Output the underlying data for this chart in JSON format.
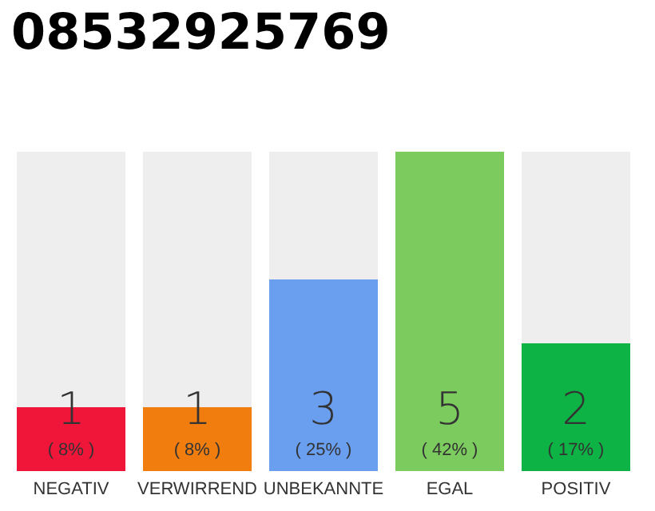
{
  "chart_data": {
    "type": "bar",
    "title": "08532925769",
    "categories": [
      "NEGATIV",
      "VERWIRREND",
      "UNBEKANNTE",
      "EGAL",
      "POSITIV"
    ],
    "values": [
      1,
      1,
      3,
      5,
      2
    ],
    "colors": [
      "#f0163a",
      "#f07d0e",
      "#6a9ff0",
      "#7ccb5f",
      "#0db344"
    ],
    "value_labels": [
      "1\n( 8% )",
      "1\n( 8% )",
      "3\n( 25% )",
      "5\n( 42% )",
      "2\n( 17% )"
    ]
  }
}
